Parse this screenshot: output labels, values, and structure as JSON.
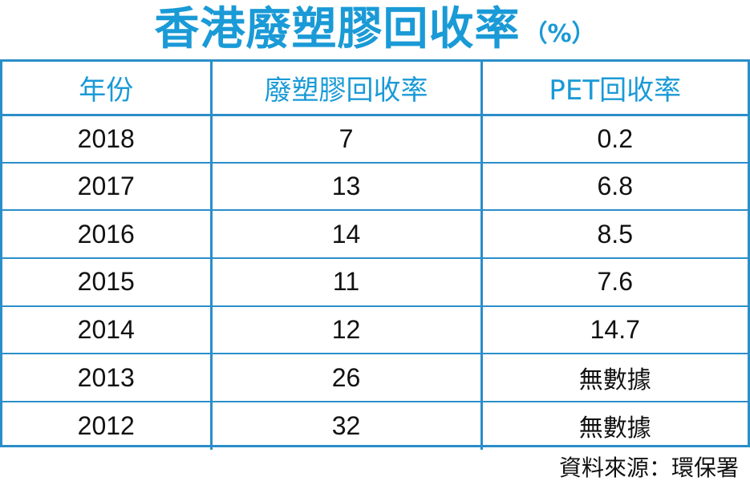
{
  "title": "香港廢塑膠回收率",
  "title_unit": "（%）",
  "source": "資料來源：環保署",
  "chart_data": {
    "type": "table",
    "title": "香港廢塑膠回收率",
    "unit": "（%）",
    "columns": [
      "年份",
      "廢塑膠回收率",
      "PET回收率"
    ],
    "rows": [
      [
        "2018",
        "7",
        "0.2"
      ],
      [
        "2017",
        "13",
        "6.8"
      ],
      [
        "2016",
        "14",
        "8.5"
      ],
      [
        "2015",
        "11",
        "7.6"
      ],
      [
        "2014",
        "12",
        "14.7"
      ],
      [
        "2013",
        "26",
        "無數據"
      ],
      [
        "2012",
        "32",
        "無數據"
      ]
    ]
  }
}
